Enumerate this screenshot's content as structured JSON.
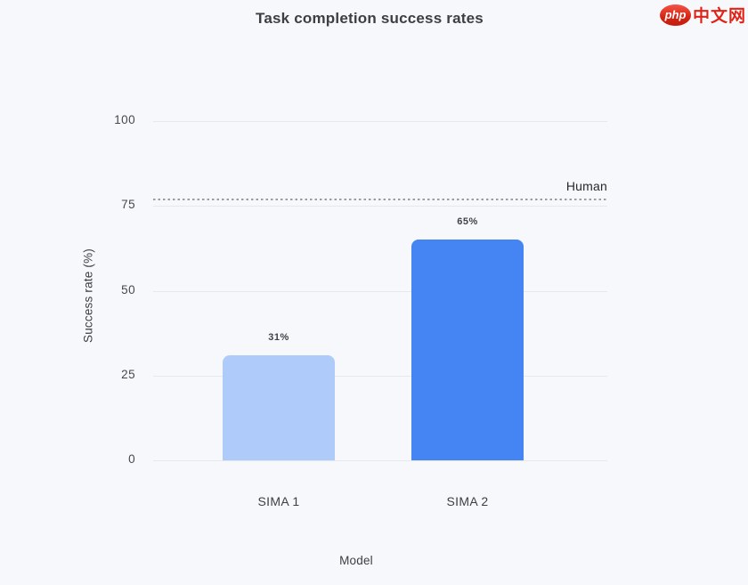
{
  "watermark": {
    "logo_text": "php",
    "site_name": "中文网",
    "brand_red": "#e02318"
  },
  "chart_data": {
    "type": "bar",
    "title": "Task completion success rates",
    "xlabel": "Model",
    "ylabel": "Success rate (%)",
    "categories": [
      "SIMA 1",
      "SIMA 2"
    ],
    "values": [
      31,
      65
    ],
    "value_labels": [
      "31%",
      "65%"
    ],
    "bar_colors": [
      "#aecbfa",
      "#4584f3"
    ],
    "yticks": [
      0,
      25,
      50,
      75,
      100
    ],
    "ylim": [
      0,
      100
    ],
    "grid": true,
    "legend": "none",
    "reference_line": {
      "label": "Human",
      "value": 77,
      "style": "dotted",
      "color": "#989ea6"
    },
    "background_color": "#f7f8fc",
    "gridline_color": "#e6e8ee"
  }
}
